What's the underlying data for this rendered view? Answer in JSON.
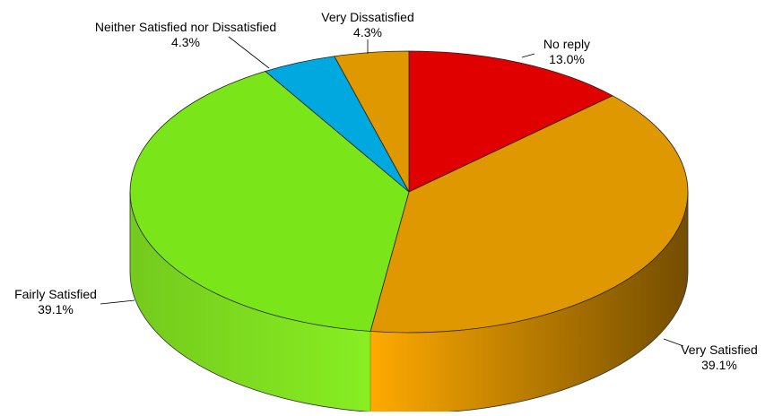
{
  "chart_data": {
    "type": "pie",
    "title": "",
    "start_angle_deg": 90,
    "direction": "clockwise",
    "slices": [
      {
        "label": "No reply",
        "value": 13.0,
        "value_label": "13.0%",
        "color": "#e00000",
        "side_color": "#c00000"
      },
      {
        "label": "Very Satisfied",
        "value": 39.1,
        "value_label": "39.1%",
        "color": "#e09800",
        "side_color": "#ffaa00"
      },
      {
        "label": "Fairly Satisfied",
        "value": 39.1,
        "value_label": "39.1%",
        "color": "#7ae619",
        "side_color": "#88ee22"
      },
      {
        "label": "Neither Satisfied nor Dissatisfied",
        "value": 4.3,
        "value_label": "4.3%",
        "color": "#00a8e0",
        "side_color": "#0090c0"
      },
      {
        "label": "Very Dissatisfied",
        "value": 4.3,
        "value_label": "4.3%",
        "color": "#e09800",
        "side_color": "#c08000"
      }
    ]
  }
}
